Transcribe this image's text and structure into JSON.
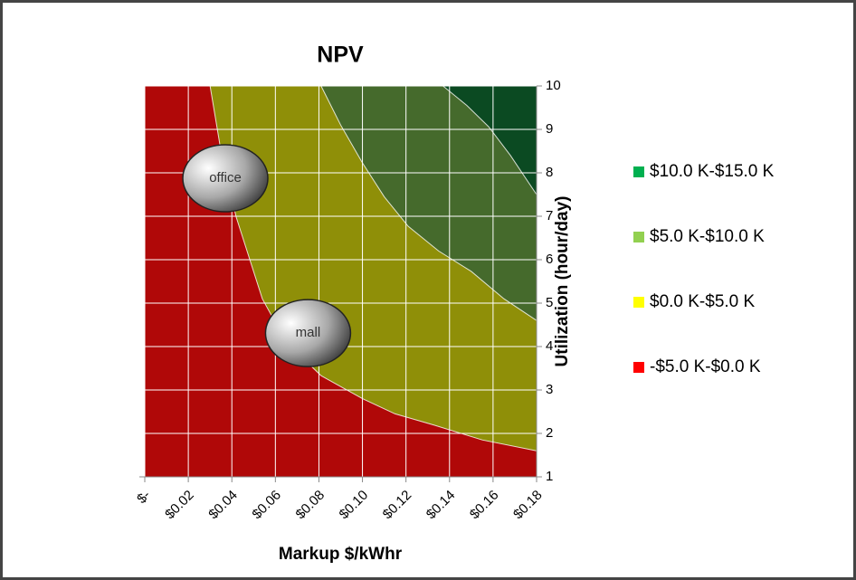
{
  "chart_data": {
    "type": "contour",
    "title": "NPV",
    "x_label": "Markup $/kWhr",
    "y_label": "Utilization (hour/day)",
    "xlim": [
      0,
      0.18
    ],
    "ylim": [
      1,
      10
    ],
    "xticks": [
      {
        "value": 0,
        "label": "$-"
      },
      {
        "value": 0.02,
        "label": "$0.02"
      },
      {
        "value": 0.04,
        "label": "$0.04"
      },
      {
        "value": 0.06,
        "label": "$0.06"
      },
      {
        "value": 0.08,
        "label": "$0.08"
      },
      {
        "value": 0.1,
        "label": "$0.10"
      },
      {
        "value": 0.12,
        "label": "$0.12"
      },
      {
        "value": 0.14,
        "label": "$0.14"
      },
      {
        "value": 0.16,
        "label": "$0.16"
      },
      {
        "value": 0.18,
        "label": "$0.18"
      }
    ],
    "yticks": [
      1,
      2,
      3,
      4,
      5,
      6,
      7,
      8,
      9,
      10
    ],
    "grid": true,
    "legend": "right",
    "series": [
      {
        "name": "$10.0 K-$15.0 K",
        "color": "#00b050",
        "fill_color": "#0b4a22",
        "boundary": {
          "x": [
            0.137,
            0.148,
            0.158,
            0.168,
            0.18
          ],
          "y": [
            10,
            9.55,
            9.06,
            8.4,
            7.5
          ]
        }
      },
      {
        "name": "$5.0 K-$10.0 K",
        "color": "#92d050",
        "fill_color": "#456a2c",
        "boundary": {
          "x": [
            0.081,
            0.09,
            0.1,
            0.11,
            0.121,
            0.135,
            0.15,
            0.165,
            0.18
          ],
          "y": [
            10,
            9.1,
            8.23,
            7.45,
            6.77,
            6.2,
            5.73,
            5.1,
            4.6
          ]
        }
      },
      {
        "name": "$0.0 K-$5.0 K",
        "color": "#ffff00",
        "fill_color": "#8f8f08",
        "boundary": {
          "x": [
            0.03,
            0.035,
            0.042,
            0.054,
            0.065,
            0.081,
            0.1,
            0.115,
            0.133,
            0.155,
            0.18
          ],
          "y": [
            10,
            8.5,
            6.98,
            5.1,
            4.1,
            3.33,
            2.8,
            2.45,
            2.19,
            1.85,
            1.6
          ]
        }
      },
      {
        "name": "-$5.0 K-$0.0 K",
        "color": "#ff0000",
        "fill_color": "#b00808"
      }
    ],
    "annotations": [
      {
        "text": "office",
        "x": 0.037,
        "y": 7.875
      },
      {
        "text": "mall",
        "x": 0.075,
        "y": 4.31
      }
    ]
  }
}
